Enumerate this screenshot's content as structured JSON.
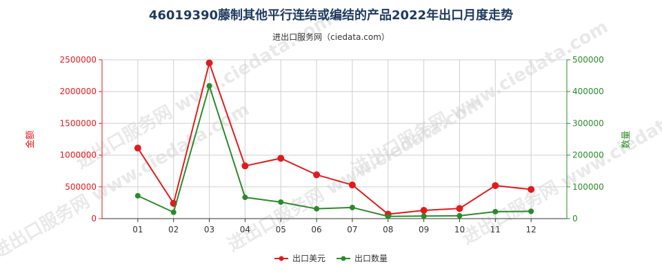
{
  "chart_data": {
    "type": "line",
    "title": "46019390藤制其他平行连结或编结的产品2022年出口月度走势",
    "subtitle": "进出口服务网（ciedata.com）",
    "categories": [
      "01",
      "02",
      "03",
      "04",
      "05",
      "06",
      "07",
      "08",
      "09",
      "10",
      "11",
      "12"
    ],
    "y_left": {
      "label": "金额",
      "lim": [
        0,
        2500000
      ],
      "ticks": [
        "0",
        "500000",
        "1000000",
        "1500000",
        "2000000",
        "2500000"
      ],
      "tick_values": [
        0,
        500000,
        1000000,
        1500000,
        2000000,
        2500000
      ],
      "color": "#e31a1c"
    },
    "y_right": {
      "label": "数量",
      "lim": [
        0,
        500000
      ],
      "ticks": [
        "0",
        "100000",
        "200000",
        "300000",
        "400000",
        "500000"
      ],
      "tick_values": [
        0,
        100000,
        200000,
        300000,
        400000,
        500000
      ],
      "color": "#2a8a2a"
    },
    "series": [
      {
        "name": "出口美元",
        "axis": "left",
        "color": "#e31a1c",
        "values": [
          1110000,
          240000,
          2450000,
          830000,
          950000,
          690000,
          530000,
          70000,
          130000,
          160000,
          520000,
          460000
        ]
      },
      {
        "name": "出口数量",
        "axis": "right",
        "color": "#2a8a2a",
        "values": [
          72000,
          20000,
          418000,
          67000,
          52000,
          31000,
          35000,
          7000,
          8000,
          9000,
          22000,
          23000
        ]
      }
    ],
    "grid": true,
    "legend_position": "bottom-center",
    "watermark": "进出口服务网 www.ciedata.com"
  }
}
